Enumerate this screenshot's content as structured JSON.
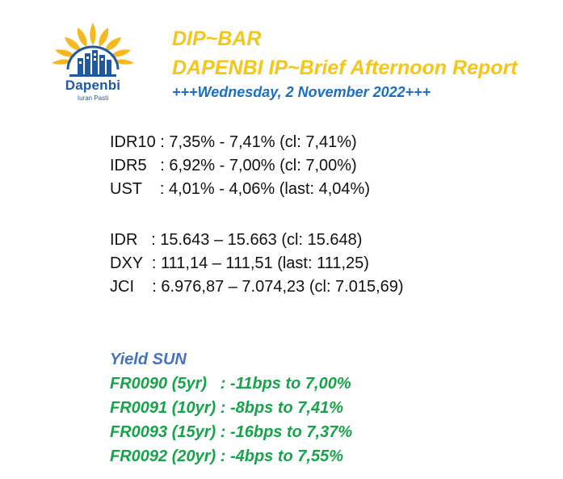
{
  "logo": {
    "name": "Dapenbi",
    "tagline": "Iuran Pasti",
    "colors": {
      "petals": "#f5b820",
      "arc": "#1f5aa0",
      "buildings": "#1f5aa0"
    },
    "icon": "sun-building-logo-icon"
  },
  "header": {
    "title": "DIP~BAR",
    "subtitle": "DAPENBI IP~Brief Afternoon Report",
    "date": "+++Wednesday, 2 November 2022+++",
    "title_color": "#f5c518",
    "date_color": "#1c6fc2"
  },
  "bonds": [
    {
      "text": "IDR10 : 7,35% - 7,41% (cl: 7,41%)"
    },
    {
      "text": "IDR5   : 6,92% - 7,00% (cl: 7,00%)"
    },
    {
      "text": "UST    : 4,01% - 4,06% (last: 4,04%)"
    }
  ],
  "markets": [
    {
      "text": "IDR   : 15.643 – 15.663 (cl: 15.648)"
    },
    {
      "text": "DXY  : 111,14 – 111,51 (last: 111,25)"
    },
    {
      "text": "JCI    : 6.976,87 – 7.074,23 (cl: 7.015,69)"
    }
  ],
  "yield_sun": {
    "title": "Yield SUN",
    "title_color": "#4472c4",
    "row_color": "#17a34a",
    "rows": [
      {
        "text": "FR0090 (5yr)   : -11bps to 7,00%"
      },
      {
        "text": "FR0091 (10yr) : -8bps to 7,41%"
      },
      {
        "text": "FR0093 (15yr) : -16bps to 7,37%"
      },
      {
        "text": "FR0092 (20yr) : -4bps to 7,55%"
      }
    ]
  }
}
